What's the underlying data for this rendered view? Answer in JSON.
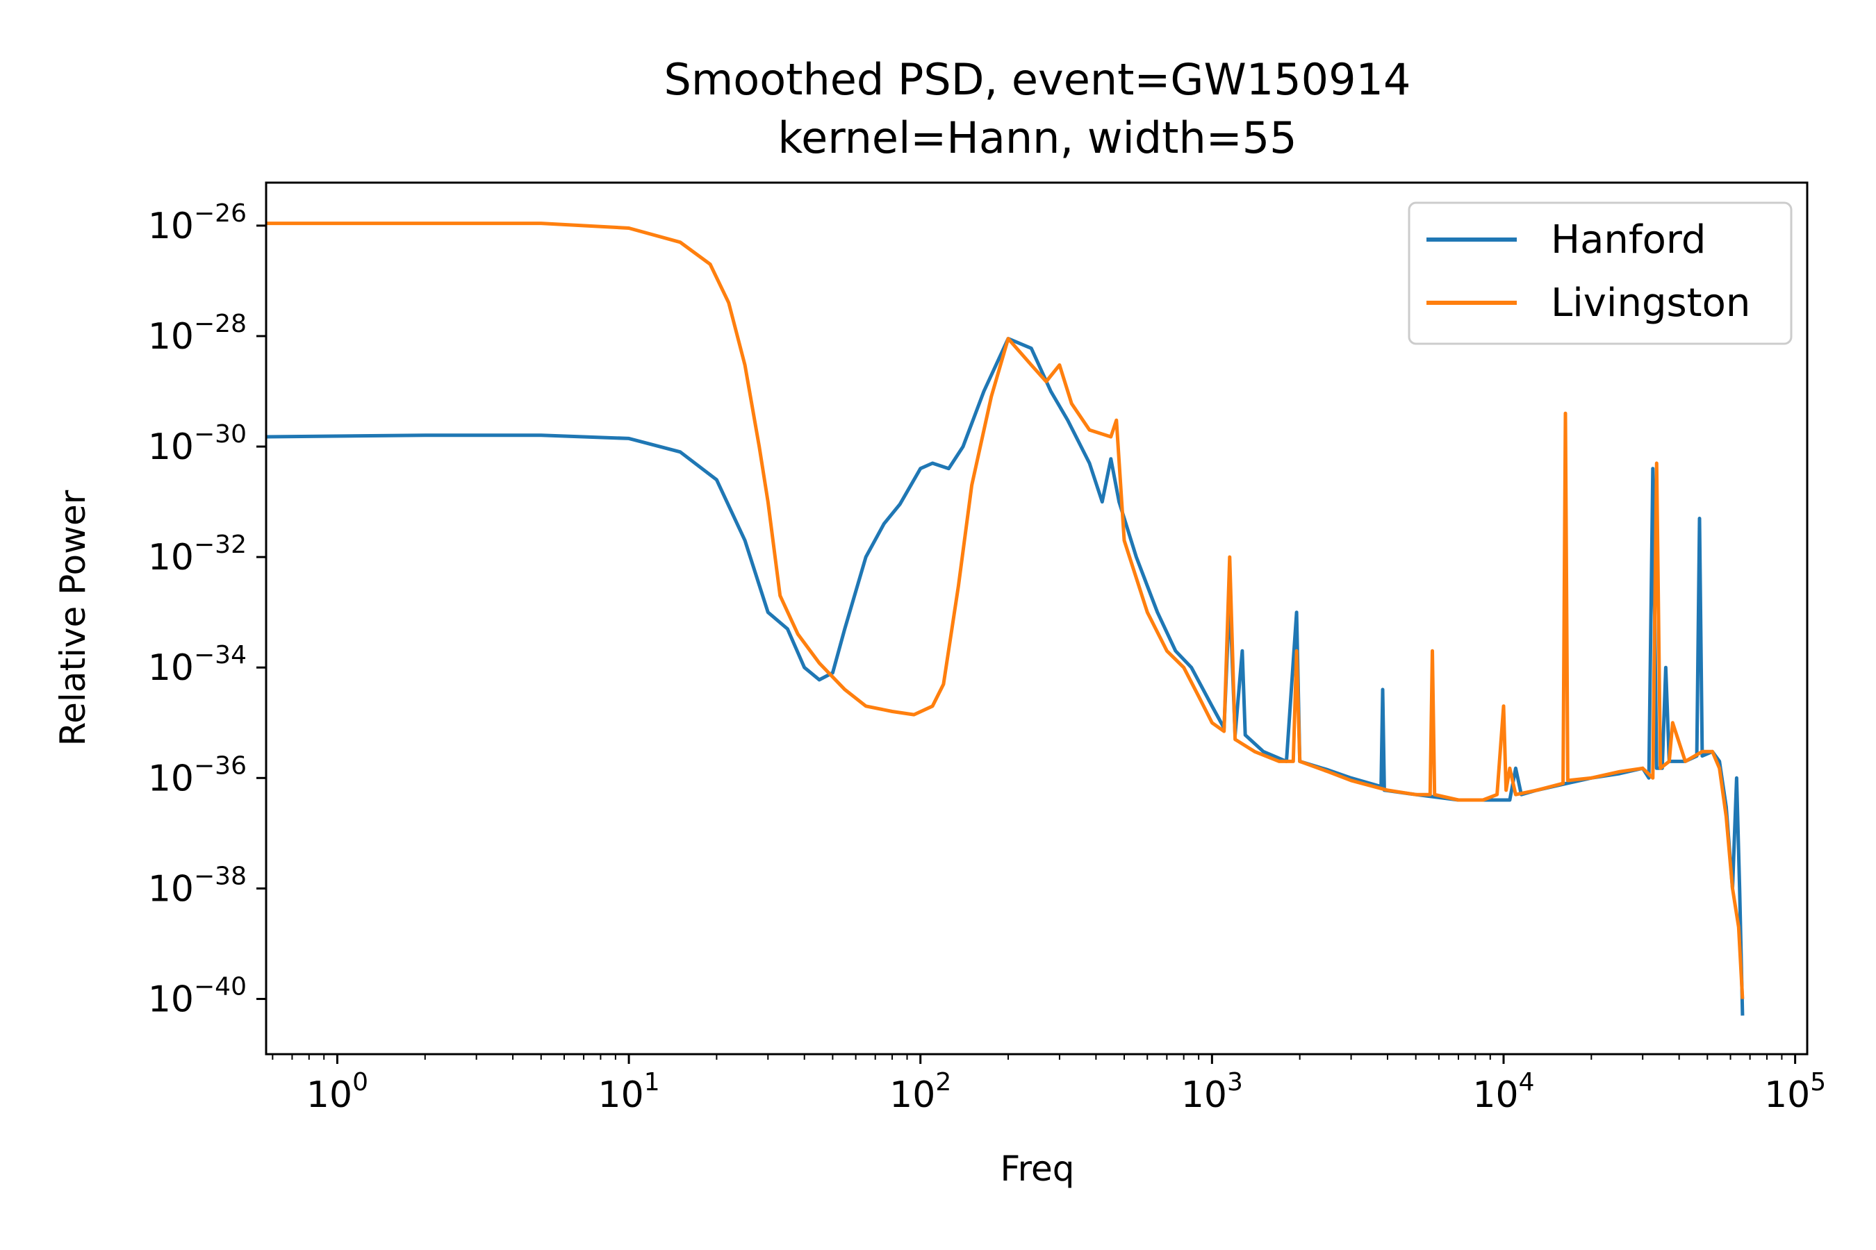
{
  "chart_data": {
    "type": "line",
    "title": "Smoothed PSD, event=GW150914",
    "subtitle": "kernel=Hann, width=55",
    "xlabel": "Freq",
    "ylabel": "Relative Power",
    "x_scale": "log",
    "y_scale": "log",
    "xlim": [
      0.57,
      110000
    ],
    "ylim": [
      1e-41,
      6e-26
    ],
    "x_ticks": [
      {
        "base": "10",
        "exp": "0",
        "value": 1
      },
      {
        "base": "10",
        "exp": "1",
        "value": 10
      },
      {
        "base": "10",
        "exp": "2",
        "value": 100
      },
      {
        "base": "10",
        "exp": "3",
        "value": 1000
      },
      {
        "base": "10",
        "exp": "4",
        "value": 10000
      },
      {
        "base": "10",
        "exp": "5",
        "value": 100000
      }
    ],
    "y_ticks": [
      {
        "base": "10",
        "exp": "−26",
        "value": 1e-26
      },
      {
        "base": "10",
        "exp": "−28",
        "value": 1e-28
      },
      {
        "base": "10",
        "exp": "−30",
        "value": 1e-30
      },
      {
        "base": "10",
        "exp": "−32",
        "value": 1e-32
      },
      {
        "base": "10",
        "exp": "−34",
        "value": 1e-34
      },
      {
        "base": "10",
        "exp": "−36",
        "value": 1e-36
      },
      {
        "base": "10",
        "exp": "−38",
        "value": 1e-38
      },
      {
        "base": "10",
        "exp": "−40",
        "value": 1e-40
      }
    ],
    "grid": false,
    "legend_position": "top-right",
    "series": [
      {
        "name": "Hanford",
        "color": "#1f77b4",
        "points": [
          [
            0.57,
            1.5e-30
          ],
          [
            2,
            1.6e-30
          ],
          [
            5,
            1.6e-30
          ],
          [
            10,
            1.4e-30
          ],
          [
            15,
            8e-31
          ],
          [
            20,
            2.5e-31
          ],
          [
            25,
            2e-32
          ],
          [
            30,
            1e-33
          ],
          [
            35,
            5e-34
          ],
          [
            40,
            1e-34
          ],
          [
            45,
            6e-35
          ],
          [
            50,
            8e-35
          ],
          [
            55,
            5e-34
          ],
          [
            65,
            1e-32
          ],
          [
            75,
            4e-32
          ],
          [
            85,
            9e-32
          ],
          [
            100,
            4e-31
          ],
          [
            110,
            5e-31
          ],
          [
            125,
            4e-31
          ],
          [
            140,
            1e-30
          ],
          [
            165,
            1e-29
          ],
          [
            200,
            9e-29
          ],
          [
            240,
            6e-29
          ],
          [
            280,
            1e-29
          ],
          [
            320,
            3e-30
          ],
          [
            380,
            5e-31
          ],
          [
            420,
            1e-31
          ],
          [
            450,
            6e-31
          ],
          [
            480,
            1e-31
          ],
          [
            550,
            1e-32
          ],
          [
            650,
            1e-33
          ],
          [
            750,
            2e-34
          ],
          [
            850,
            1e-34
          ],
          [
            1000,
            2e-35
          ],
          [
            1100,
            8e-36
          ],
          [
            1150,
            2e-33
          ],
          [
            1200,
            6e-36
          ],
          [
            1270,
            2e-34
          ],
          [
            1300,
            6e-36
          ],
          [
            1500,
            3e-36
          ],
          [
            1800,
            2e-36
          ],
          [
            1950,
            1e-33
          ],
          [
            2000,
            2e-36
          ],
          [
            2500,
            1.4e-36
          ],
          [
            3000,
            1e-36
          ],
          [
            3800,
            7e-37
          ],
          [
            3850,
            4e-35
          ],
          [
            3900,
            6e-37
          ],
          [
            5000,
            5e-37
          ],
          [
            7000,
            4e-37
          ],
          [
            9000,
            4e-37
          ],
          [
            10500,
            4e-37
          ],
          [
            11000,
            1.5e-36
          ],
          [
            11500,
            5e-37
          ],
          [
            13000,
            6e-37
          ],
          [
            16500,
            8e-37
          ],
          [
            20000,
            1e-36
          ],
          [
            25000,
            1.2e-36
          ],
          [
            30000,
            1.5e-36
          ],
          [
            31500,
            1e-36
          ],
          [
            32500,
            4e-31
          ],
          [
            33500,
            1.5e-36
          ],
          [
            35000,
            1.5e-36
          ],
          [
            36000,
            1e-34
          ],
          [
            37000,
            2e-36
          ],
          [
            42000,
            2e-36
          ],
          [
            46000,
            2.5e-36
          ],
          [
            47000,
            5e-32
          ],
          [
            48000,
            2.5e-36
          ],
          [
            52000,
            3e-36
          ],
          [
            55000,
            2e-36
          ],
          [
            58000,
            3e-37
          ],
          [
            61000,
            1e-38
          ],
          [
            63000,
            1e-36
          ],
          [
            64500,
            1e-38
          ],
          [
            66000,
            5e-41
          ]
        ]
      },
      {
        "name": "Livingston",
        "color": "#ff7f0e",
        "points": [
          [
            0.57,
            1.1e-26
          ],
          [
            2,
            1.1e-26
          ],
          [
            5,
            1.1e-26
          ],
          [
            10,
            9e-27
          ],
          [
            15,
            5e-27
          ],
          [
            19,
            2e-27
          ],
          [
            22,
            4e-28
          ],
          [
            25,
            3e-29
          ],
          [
            28,
            1e-30
          ],
          [
            30,
            1e-31
          ],
          [
            33,
            2e-33
          ],
          [
            38,
            4e-34
          ],
          [
            45,
            1.2e-34
          ],
          [
            55,
            4e-35
          ],
          [
            65,
            2e-35
          ],
          [
            80,
            1.6e-35
          ],
          [
            95,
            1.4e-35
          ],
          [
            110,
            2e-35
          ],
          [
            120,
            5e-35
          ],
          [
            135,
            3e-33
          ],
          [
            150,
            2e-31
          ],
          [
            175,
            8e-30
          ],
          [
            200,
            9e-29
          ],
          [
            240,
            3e-29
          ],
          [
            270,
            1.5e-29
          ],
          [
            300,
            3e-29
          ],
          [
            330,
            6e-30
          ],
          [
            380,
            2e-30
          ],
          [
            450,
            1.5e-30
          ],
          [
            470,
            3e-30
          ],
          [
            500,
            2e-32
          ],
          [
            600,
            1e-33
          ],
          [
            700,
            2e-34
          ],
          [
            800,
            1e-34
          ],
          [
            900,
            3e-35
          ],
          [
            1000,
            1e-35
          ],
          [
            1100,
            7e-36
          ],
          [
            1150,
            1e-32
          ],
          [
            1200,
            5e-36
          ],
          [
            1400,
            3e-36
          ],
          [
            1700,
            2e-36
          ],
          [
            1900,
            2e-36
          ],
          [
            1950,
            2e-34
          ],
          [
            2000,
            2e-36
          ],
          [
            2500,
            1.3e-36
          ],
          [
            3000,
            9e-37
          ],
          [
            4000,
            6e-37
          ],
          [
            5000,
            5e-37
          ],
          [
            5600,
            5e-37
          ],
          [
            5700,
            2e-34
          ],
          [
            5800,
            5e-37
          ],
          [
            7000,
            4e-37
          ],
          [
            8500,
            4e-37
          ],
          [
            9500,
            5e-37
          ],
          [
            10000,
            2e-35
          ],
          [
            10200,
            6e-37
          ],
          [
            10500,
            1.5e-36
          ],
          [
            11000,
            5e-37
          ],
          [
            13000,
            6e-37
          ],
          [
            16000,
            8e-37
          ],
          [
            16300,
            4e-30
          ],
          [
            16600,
            9e-37
          ],
          [
            20000,
            1e-36
          ],
          [
            25000,
            1.3e-36
          ],
          [
            30000,
            1.5e-36
          ],
          [
            32500,
            1e-36
          ],
          [
            33500,
            5e-31
          ],
          [
            34500,
            1.5e-36
          ],
          [
            37000,
            2e-36
          ],
          [
            38000,
            1e-35
          ],
          [
            42000,
            2e-36
          ],
          [
            48000,
            3e-36
          ],
          [
            52000,
            3e-36
          ],
          [
            55000,
            1.5e-36
          ],
          [
            58000,
            2e-37
          ],
          [
            61000,
            1e-38
          ],
          [
            64000,
            2e-39
          ],
          [
            66000,
            1e-40
          ]
        ]
      }
    ]
  }
}
